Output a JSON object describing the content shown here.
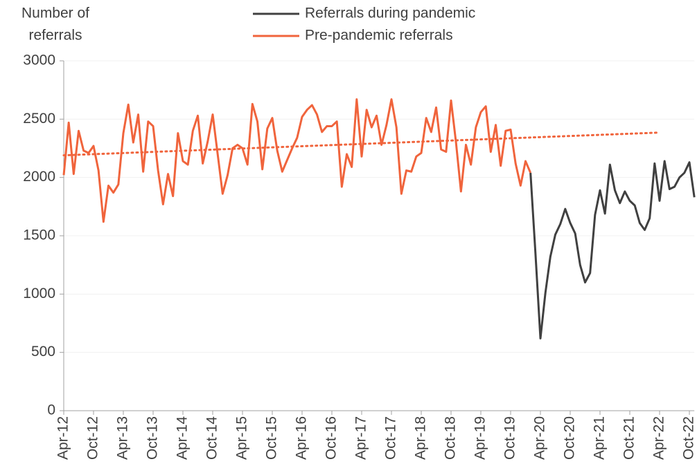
{
  "chart_data": {
    "type": "line",
    "y_label": [
      "Number of",
      "referrals"
    ],
    "categories": [
      "Apr-12",
      null,
      null,
      null,
      null,
      null,
      "Oct-12",
      null,
      null,
      null,
      null,
      null,
      "Apr-13",
      null,
      null,
      null,
      null,
      null,
      "Oct-13",
      null,
      null,
      null,
      null,
      null,
      "Apr-14",
      null,
      null,
      null,
      null,
      null,
      "Oct-14",
      null,
      null,
      null,
      null,
      null,
      "Apr-15",
      null,
      null,
      null,
      null,
      null,
      "Oct-15",
      null,
      null,
      null,
      null,
      null,
      "Apr-16",
      null,
      null,
      null,
      null,
      null,
      "Oct-16",
      null,
      null,
      null,
      null,
      null,
      "Apr-17",
      null,
      null,
      null,
      null,
      null,
      "Oct-17",
      null,
      null,
      null,
      null,
      null,
      "Apr-18",
      null,
      null,
      null,
      null,
      null,
      "Oct-18",
      null,
      null,
      null,
      null,
      null,
      "Apr-19",
      null,
      null,
      null,
      null,
      null,
      "Oct-19",
      null,
      null,
      null,
      null,
      null,
      "Apr-20",
      null,
      null,
      null,
      null,
      null,
      "Oct-20",
      null,
      null,
      null,
      null,
      null,
      "Apr-21",
      null,
      null,
      null,
      null,
      null,
      "Oct-21",
      null,
      null,
      null,
      null,
      null,
      "Apr-22",
      null,
      null,
      null,
      null,
      null,
      "Oct-22",
      null
    ],
    "series": [
      {
        "name": "Referrals during pandemic",
        "color": "#404040",
        "values": [
          null,
          null,
          null,
          null,
          null,
          null,
          null,
          null,
          null,
          null,
          null,
          null,
          null,
          null,
          null,
          null,
          null,
          null,
          null,
          null,
          null,
          null,
          null,
          null,
          null,
          null,
          null,
          null,
          null,
          null,
          null,
          null,
          null,
          null,
          null,
          null,
          null,
          null,
          null,
          null,
          null,
          null,
          null,
          null,
          null,
          null,
          null,
          null,
          null,
          null,
          null,
          null,
          null,
          null,
          null,
          null,
          null,
          null,
          null,
          null,
          null,
          null,
          null,
          null,
          null,
          null,
          null,
          null,
          null,
          null,
          null,
          null,
          null,
          null,
          null,
          null,
          null,
          null,
          null,
          null,
          null,
          null,
          null,
          null,
          null,
          null,
          null,
          null,
          null,
          null,
          null,
          null,
          null,
          null,
          2040,
          1350,
          620,
          1010,
          1320,
          1510,
          1600,
          1730,
          1610,
          1520,
          1250,
          1100,
          1180,
          1680,
          1890,
          1690,
          2110,
          1890,
          1780,
          1880,
          1800,
          1760,
          1610,
          1550,
          1650,
          2120,
          1800,
          2140,
          1900,
          1920,
          2000,
          2040,
          2130,
          1830
        ]
      },
      {
        "name": "Pre-pandemic referrals",
        "color": "#f0643c",
        "values": [
          2020,
          2470,
          2030,
          2400,
          2230,
          2210,
          2270,
          2060,
          1620,
          1930,
          1870,
          1940,
          2380,
          2625,
          2300,
          2540,
          2050,
          2480,
          2440,
          2060,
          1770,
          2030,
          1840,
          2380,
          2140,
          2110,
          2400,
          2530,
          2120,
          2310,
          2540,
          2200,
          1860,
          2020,
          2250,
          2280,
          2250,
          2110,
          2630,
          2480,
          2070,
          2420,
          2510,
          2230,
          2050,
          2150,
          2250,
          2340,
          2520,
          2580,
          2620,
          2540,
          2390,
          2440,
          2440,
          2480,
          1920,
          2200,
          2090,
          2670,
          2180,
          2580,
          2430,
          2530,
          2280,
          2450,
          2670,
          2430,
          1860,
          2060,
          2050,
          2180,
          2210,
          2510,
          2390,
          2600,
          2240,
          2220,
          2660,
          2300,
          1880,
          2280,
          2110,
          2430,
          2560,
          2610,
          2220,
          2450,
          2100,
          2400,
          2410,
          2120,
          1930,
          2140,
          2040,
          null,
          null,
          null,
          null,
          null,
          null,
          null,
          null,
          null,
          null,
          null,
          null,
          null,
          null,
          null,
          null,
          null,
          null,
          null,
          null,
          null,
          null,
          null,
          null,
          null,
          null,
          null,
          null,
          null,
          null,
          null,
          null,
          null
        ]
      }
    ],
    "trendline": {
      "color": "#f0643c",
      "style": "dotted",
      "from": "Apr-12",
      "to": "Apr-22",
      "values": [
        2190,
        2385
      ]
    },
    "ylim": [
      0,
      3000
    ],
    "yticks": [
      0,
      500,
      1000,
      1500,
      2000,
      2500,
      3000
    ],
    "grid": true,
    "legend": "top"
  }
}
